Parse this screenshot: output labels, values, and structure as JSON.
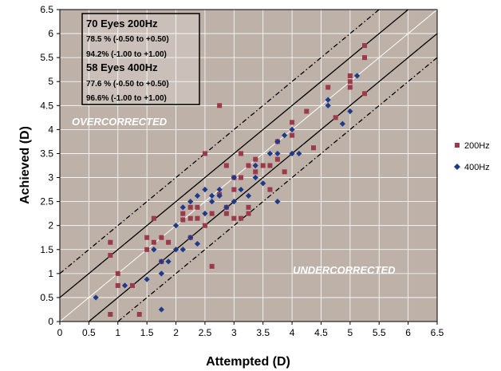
{
  "chart_data": {
    "type": "scatter",
    "xlabel": "Attempted (D)",
    "ylabel": "Achieved (D)",
    "xlim": [
      0,
      6.5
    ],
    "ylim": [
      0,
      6.5
    ],
    "x_ticks": [
      "0",
      "0.5",
      "1",
      "1.5",
      "2",
      "2.5",
      "3",
      "3.5",
      "4",
      "4.5",
      "5",
      "5.5",
      "6",
      "6.5"
    ],
    "y_ticks": [
      "0",
      "0.5",
      "1",
      "1.5",
      "2",
      "2.5",
      "3",
      "3.5",
      "4",
      "4.5",
      "5",
      "5.5",
      "6",
      "6.5"
    ],
    "grid": true,
    "legend_position": "right",
    "plot_background": "#bdb1a8",
    "annotation": [
      {
        "text": "70 Eyes 200Hz",
        "style": "head"
      },
      {
        "text": "78.5 % (-0.50 to +0.50)",
        "style": "line"
      },
      {
        "text": "94.2% (-1.00 to +1.00)",
        "style": "line"
      },
      {
        "text": "58 Eyes 400Hz",
        "style": "head"
      },
      {
        "text": "77.6 % (-0.50 to +0.50)",
        "style": "line"
      },
      {
        "text": "96.6% (-1.00 to +1.00)",
        "style": "line"
      }
    ],
    "region_labels": {
      "over": "OVERCORRECTED",
      "under": "UNDERCORRECTED"
    },
    "reference_lines": [
      {
        "offset": 0,
        "color": "#ffffff",
        "style": "solid"
      },
      {
        "offset": 0.5,
        "color": "#000000",
        "style": "solid"
      },
      {
        "offset": -0.5,
        "color": "#000000",
        "style": "solid"
      },
      {
        "offset": 1.0,
        "color": "#000000",
        "style": "dashdot"
      },
      {
        "offset": -1.0,
        "color": "#000000",
        "style": "dashdot"
      }
    ],
    "series": [
      {
        "name": "200Hz",
        "marker": "square",
        "color": "#9b3a4a",
        "points": [
          [
            0.87,
            1.65
          ],
          [
            0.87,
            1.38
          ],
          [
            0.87,
            0.15
          ],
          [
            1.0,
            1.0
          ],
          [
            1.0,
            0.75
          ],
          [
            1.25,
            0.75
          ],
          [
            1.37,
            0.15
          ],
          [
            1.5,
            1.75
          ],
          [
            1.5,
            1.5
          ],
          [
            1.62,
            2.15
          ],
          [
            1.62,
            1.65
          ],
          [
            1.75,
            1.75
          ],
          [
            1.75,
            1.25
          ],
          [
            1.87,
            1.65
          ],
          [
            2.12,
            2.25
          ],
          [
            2.12,
            2.12
          ],
          [
            2.25,
            2.38
          ],
          [
            2.25,
            2.15
          ],
          [
            2.25,
            1.75
          ],
          [
            2.37,
            2.38
          ],
          [
            2.37,
            2.15
          ],
          [
            2.5,
            3.5
          ],
          [
            2.5,
            2.0
          ],
          [
            2.62,
            2.25
          ],
          [
            2.62,
            1.15
          ],
          [
            2.75,
            4.5
          ],
          [
            2.75,
            2.65
          ],
          [
            2.87,
            3.25
          ],
          [
            2.87,
            2.38
          ],
          [
            2.87,
            2.25
          ],
          [
            3.0,
            3.0
          ],
          [
            3.0,
            2.75
          ],
          [
            3.0,
            2.15
          ],
          [
            3.12,
            3.5
          ],
          [
            3.12,
            3.0
          ],
          [
            3.12,
            2.15
          ],
          [
            3.25,
            3.25
          ],
          [
            3.25,
            2.38
          ],
          [
            3.25,
            2.25
          ],
          [
            3.37,
            3.38
          ],
          [
            3.37,
            3.12
          ],
          [
            3.5,
            3.25
          ],
          [
            3.62,
            3.25
          ],
          [
            3.62,
            2.75
          ],
          [
            3.75,
            3.75
          ],
          [
            3.75,
            3.38
          ],
          [
            3.87,
            3.12
          ],
          [
            4.0,
            4.15
          ],
          [
            4.0,
            3.88
          ],
          [
            4.25,
            4.38
          ],
          [
            4.37,
            3.62
          ],
          [
            4.62,
            4.88
          ],
          [
            4.75,
            4.25
          ],
          [
            5.0,
            5.12
          ],
          [
            5.0,
            5.0
          ],
          [
            5.0,
            4.88
          ],
          [
            5.25,
            5.75
          ],
          [
            5.25,
            5.5
          ],
          [
            5.25,
            4.75
          ]
        ]
      },
      {
        "name": "400Hz",
        "marker": "diamond",
        "color": "#1f3a8a",
        "points": [
          [
            0.62,
            0.5
          ],
          [
            1.12,
            0.75
          ],
          [
            1.5,
            0.88
          ],
          [
            1.62,
            1.5
          ],
          [
            1.75,
            1.25
          ],
          [
            1.75,
            1.0
          ],
          [
            1.75,
            0.25
          ],
          [
            1.87,
            1.25
          ],
          [
            2.0,
            2.0
          ],
          [
            2.0,
            1.5
          ],
          [
            2.12,
            2.38
          ],
          [
            2.12,
            1.5
          ],
          [
            2.25,
            2.5
          ],
          [
            2.25,
            1.75
          ],
          [
            2.37,
            2.62
          ],
          [
            2.37,
            1.62
          ],
          [
            2.5,
            2.75
          ],
          [
            2.5,
            2.25
          ],
          [
            2.62,
            2.62
          ],
          [
            2.62,
            2.5
          ],
          [
            2.75,
            2.75
          ],
          [
            2.75,
            2.62
          ],
          [
            2.87,
            2.38
          ],
          [
            3.0,
            3.0
          ],
          [
            3.0,
            2.5
          ],
          [
            3.12,
            2.75
          ],
          [
            3.25,
            2.62
          ],
          [
            3.37,
            3.25
          ],
          [
            3.37,
            3.0
          ],
          [
            3.5,
            2.88
          ],
          [
            3.62,
            3.5
          ],
          [
            3.75,
            3.75
          ],
          [
            3.75,
            3.5
          ],
          [
            3.75,
            2.5
          ],
          [
            3.87,
            3.88
          ],
          [
            4.0,
            4.0
          ],
          [
            4.0,
            3.5
          ],
          [
            4.12,
            3.5
          ],
          [
            4.62,
            4.62
          ],
          [
            4.62,
            4.5
          ],
          [
            4.87,
            4.12
          ],
          [
            5.0,
            4.38
          ],
          [
            5.12,
            5.12
          ]
        ]
      }
    ]
  }
}
